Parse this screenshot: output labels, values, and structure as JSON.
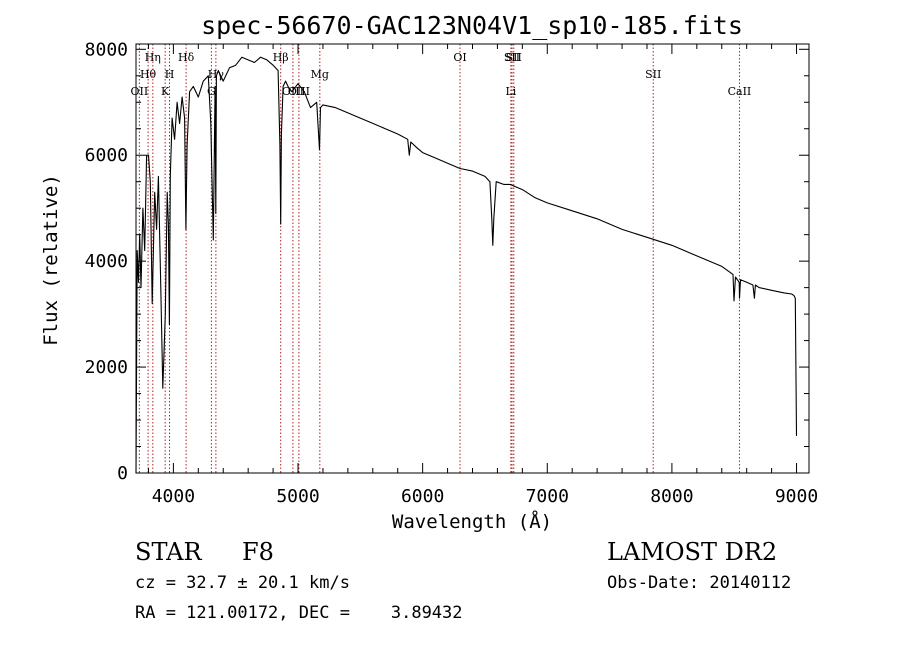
{
  "chart_data": {
    "type": "line",
    "title": "spec-56670-GAC123N04V1_sp10-185.fits",
    "xlabel": "Wavelength (Å)",
    "ylabel": "Flux (relative)",
    "xlim": [
      3700,
      9100
    ],
    "ylim": [
      0,
      8100
    ],
    "xticks": [
      4000,
      5000,
      6000,
      7000,
      8000,
      9000
    ],
    "yticks": [
      0,
      2000,
      4000,
      6000,
      8000
    ],
    "xtick_labels": [
      "4000",
      "5000",
      "6000",
      "7000",
      "8000",
      "9000"
    ],
    "ytick_labels": [
      "0",
      "2000",
      "4000",
      "6000",
      "8000"
    ],
    "spectrum": {
      "x": [
        3700,
        3710,
        3720,
        3730,
        3740,
        3755,
        3770,
        3785,
        3800,
        3815,
        3830,
        3850,
        3865,
        3880,
        3900,
        3915,
        3935,
        3950,
        3960,
        3968,
        3975,
        3990,
        4010,
        4030,
        4050,
        4070,
        4090,
        4100,
        4110,
        4130,
        4160,
        4200,
        4240,
        4280,
        4300,
        4320,
        4335,
        4340,
        4345,
        4360,
        4400,
        4450,
        4500,
        4550,
        4600,
        4650,
        4700,
        4750,
        4800,
        4840,
        4855,
        4861,
        4867,
        4880,
        4900,
        4920,
        4950,
        5000,
        5050,
        5100,
        5150,
        5172,
        5180,
        5200,
        5300,
        5400,
        5500,
        5600,
        5700,
        5800,
        5880,
        5893,
        5905,
        5950,
        6000,
        6100,
        6200,
        6300,
        6400,
        6500,
        6540,
        6555,
        6563,
        6571,
        6590,
        6650,
        6700,
        6800,
        6900,
        7000,
        7200,
        7400,
        7600,
        7800,
        8000,
        8200,
        8400,
        8490,
        8498,
        8510,
        8540,
        8542,
        8550,
        8600,
        8650,
        8662,
        8670,
        8700,
        8800,
        8900,
        8960,
        8980,
        8990,
        9000
      ],
      "y": [
        0,
        4200,
        3600,
        4500,
        3500,
        5000,
        4200,
        6000,
        6000,
        5500,
        3200,
        5300,
        4600,
        5600,
        3400,
        1600,
        3000,
        5300,
        4700,
        2800,
        5600,
        6700,
        6300,
        7000,
        6600,
        7100,
        6700,
        4600,
        6200,
        7200,
        7300,
        7100,
        7400,
        7500,
        6600,
        4400,
        7300,
        4900,
        7500,
        7600,
        7400,
        7650,
        7700,
        7850,
        7800,
        7750,
        7850,
        7800,
        7700,
        7600,
        6200,
        4700,
        6400,
        7300,
        7400,
        7300,
        7200,
        7350,
        7200,
        6900,
        7000,
        6100,
        6900,
        6950,
        6900,
        6800,
        6700,
        6600,
        6500,
        6400,
        6300,
        6000,
        6250,
        6150,
        6050,
        5950,
        5850,
        5750,
        5700,
        5600,
        5500,
        4800,
        4300,
        4800,
        5500,
        5450,
        5450,
        5350,
        5200,
        5100,
        4950,
        4800,
        4600,
        4450,
        4300,
        4100,
        3900,
        3750,
        3250,
        3700,
        3600,
        3300,
        3650,
        3600,
        3550,
        3300,
        3550,
        3500,
        3450,
        3400,
        3380,
        3350,
        3300,
        700
      ]
    },
    "line_marks": [
      {
        "label": "OII",
        "x": 3727,
        "row": 3
      },
      {
        "label": "Hθ",
        "x": 3797,
        "row": 2
      },
      {
        "label": "Hη",
        "x": 3835,
        "row": 1
      },
      {
        "label": "K",
        "x": 3934,
        "row": 3
      },
      {
        "label": "H",
        "x": 3969,
        "row": 2
      },
      {
        "label": "Hδ",
        "x": 4102,
        "row": 1
      },
      {
        "label": "G",
        "x": 4305,
        "row": 3
      },
      {
        "label": "Hγ",
        "x": 4341,
        "row": 2
      },
      {
        "label": "Hβ",
        "x": 4861,
        "row": 1
      },
      {
        "label": "OIII",
        "x": 4959,
        "row": 3
      },
      {
        "label": "OIII",
        "x": 5007,
        "row": 3
      },
      {
        "label": "Mg",
        "x": 5175,
        "row": 2
      },
      {
        "label": "OI",
        "x": 6300,
        "row": 1
      },
      {
        "label": "Li",
        "x": 6708,
        "row": 3
      },
      {
        "label": "SII",
        "x": 6717,
        "row": 1
      },
      {
        "label": "SII",
        "x": 6731,
        "row": 1
      },
      {
        "label": "SII",
        "x": 7850,
        "row": 2
      },
      {
        "label": "CaII",
        "x": 8542,
        "row": 3
      }
    ]
  },
  "info": {
    "class": "STAR",
    "subclass": "F8",
    "survey": "LAMOST DR2",
    "cz": "cz = 32.7 ± 20.1 km/s",
    "obs_date": "Obs-Date: 20140112",
    "radec": "RA = 121.00172, DEC =    3.89432"
  },
  "colors": {
    "line": "#000000",
    "mark": "#b22222",
    "axis": "#000000",
    "background": "#ffffff"
  }
}
